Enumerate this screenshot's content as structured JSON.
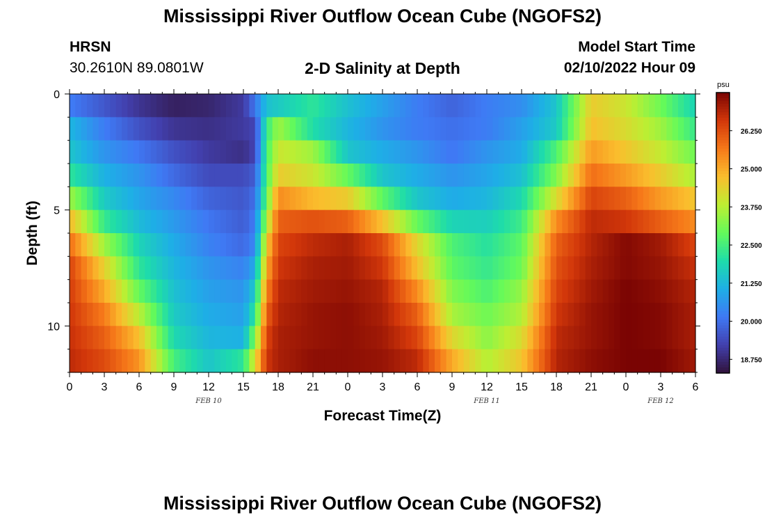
{
  "header": {
    "title": "Mississippi River Outflow Ocean Cube (NGOFS2)",
    "station": "HRSN",
    "coords": "30.2610N  89.0801W",
    "subtitle": "2-D Salinity at Depth",
    "start_label": "Model Start Time",
    "start_value": "02/10/2022 Hour 09"
  },
  "footer": {
    "title": "Mississippi River Outflow Ocean Cube (NGOFS2)"
  },
  "colors": {
    "palette": "turbo",
    "frame": "#000000"
  },
  "chart_data": {
    "type": "heatmap",
    "xlabel": "Forecast Time(Z)",
    "ylabel": "Depth (ft)",
    "x_range_hours": [
      0,
      54
    ],
    "x_ticks": [
      "0",
      "3",
      "6",
      "9",
      "12",
      "15",
      "18",
      "21",
      "0",
      "3",
      "6",
      "9",
      "12",
      "15",
      "18",
      "21",
      "0",
      "3",
      "6"
    ],
    "date_labels": [
      {
        "label": "FEB 10",
        "at_hour": 12
      },
      {
        "label": "FEB 11",
        "at_hour": 36
      },
      {
        "label": "FEB 12",
        "at_hour": 51
      }
    ],
    "y_range_ft": [
      0,
      12
    ],
    "y_ticks": [
      0,
      5,
      10
    ],
    "depth_levels_ft": [
      0.5,
      1.5,
      2.5,
      3.5,
      4.5,
      5.5,
      6.5,
      7.5,
      8.5,
      9.5,
      10.5,
      11.5
    ],
    "time_knots_hours": [
      0,
      3,
      6,
      9,
      12,
      15,
      16,
      17,
      18,
      21,
      24,
      27,
      30,
      33,
      36,
      39,
      42,
      45,
      48,
      51,
      54
    ],
    "salinity": [
      [
        20.2,
        19.6,
        19.0,
        18.6,
        18.7,
        19.1,
        20.1,
        21.4,
        21.6,
        22.2,
        21.4,
        20.8,
        20.2,
        19.8,
        20.2,
        20.5,
        21.5,
        24.5,
        24.0,
        23.0,
        21.8
      ],
      [
        21.2,
        20.2,
        19.5,
        19.0,
        18.9,
        19.1,
        19.3,
        22.3,
        23.5,
        22.0,
        21.2,
        20.6,
        20.2,
        20.0,
        20.2,
        20.8,
        21.6,
        24.7,
        24.2,
        23.5,
        22.3
      ],
      [
        21.5,
        20.6,
        20.1,
        19.5,
        19.1,
        18.9,
        19.3,
        22.5,
        24.0,
        23.5,
        21.5,
        21.0,
        20.6,
        20.1,
        20.6,
        21.0,
        22.6,
        25.2,
        24.6,
        23.9,
        23.0
      ],
      [
        22.2,
        21.1,
        20.6,
        19.9,
        19.4,
        19.4,
        19.7,
        22.6,
        24.5,
        24.0,
        22.9,
        21.5,
        21.0,
        20.6,
        20.9,
        21.4,
        23.2,
        25.8,
        25.2,
        24.5,
        23.6
      ],
      [
        23.5,
        21.6,
        20.9,
        20.4,
        19.8,
        19.6,
        20.0,
        22.9,
        25.4,
        24.8,
        24.5,
        22.8,
        21.5,
        21.0,
        21.2,
        21.9,
        24.2,
        26.4,
        26.0,
        25.2,
        24.6
      ],
      [
        24.8,
        22.3,
        21.3,
        20.7,
        20.1,
        19.7,
        20.2,
        23.6,
        26.0,
        26.2,
        26.0,
        24.7,
        22.9,
        21.8,
        21.7,
        22.4,
        25.4,
        26.8,
        26.6,
        26.0,
        25.4
      ],
      [
        25.8,
        23.5,
        21.8,
        21.0,
        20.3,
        19.9,
        20.4,
        24.5,
        26.4,
        26.8,
        27.0,
        26.3,
        24.3,
        22.6,
        22.1,
        22.8,
        26.0,
        26.9,
        27.4,
        27.1,
        26.4
      ],
      [
        26.4,
        24.4,
        22.2,
        21.2,
        20.6,
        20.3,
        21.0,
        25.0,
        26.6,
        27.0,
        27.1,
        26.6,
        24.7,
        22.8,
        22.3,
        23.0,
        26.2,
        27.0,
        27.4,
        27.2,
        26.7
      ],
      [
        26.5,
        25.0,
        22.9,
        21.4,
        20.8,
        20.6,
        21.6,
        25.5,
        26.8,
        27.1,
        27.2,
        26.9,
        25.4,
        23.2,
        22.6,
        23.4,
        26.4,
        27.1,
        27.5,
        27.3,
        26.9
      ],
      [
        26.6,
        25.6,
        23.8,
        21.6,
        21.0,
        20.8,
        22.2,
        26.0,
        26.9,
        27.2,
        27.3,
        27.0,
        26.0,
        23.6,
        23.0,
        23.7,
        26.6,
        27.2,
        27.5,
        27.4,
        27.0
      ],
      [
        26.7,
        26.0,
        24.7,
        21.9,
        21.2,
        21.1,
        23.2,
        26.4,
        27.0,
        27.2,
        27.3,
        27.1,
        26.4,
        24.3,
        23.3,
        24.2,
        26.8,
        27.2,
        27.5,
        27.4,
        27.0
      ],
      [
        26.8,
        26.3,
        25.3,
        22.5,
        21.5,
        22.2,
        24.2,
        26.6,
        27.0,
        27.3,
        27.3,
        27.2,
        26.8,
        25.0,
        23.7,
        24.6,
        26.9,
        27.3,
        27.5,
        27.5,
        27.1
      ]
    ],
    "colorbar": {
      "unit": "psu",
      "min": 18.3,
      "max": 27.5,
      "ticks": [
        "26.250",
        "25.000",
        "23.750",
        "22.500",
        "21.250",
        "20.000",
        "18.750"
      ]
    }
  }
}
